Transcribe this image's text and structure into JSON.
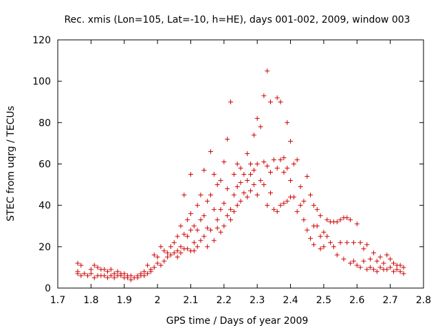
{
  "chart_data": {
    "type": "scatter",
    "title": "Rec. xmis (Lon=105, Lat=-10, h=HE), days 001-002, 2009, window 003",
    "xlabel": "GPS time / Days of year 2009",
    "ylabel": "STEC from uqrg / TECUs",
    "xlim": [
      1.7,
      2.8
    ],
    "ylim": [
      0,
      120
    ],
    "xticks": [
      "1.7",
      "1.8",
      "1.9",
      "2",
      "2.1",
      "2.2",
      "2.3",
      "2.4",
      "2.5",
      "2.6",
      "2.7",
      "2.8"
    ],
    "yticks": [
      "0",
      "20",
      "40",
      "60",
      "80",
      "100",
      "120"
    ],
    "grid": false,
    "marker": "+",
    "color": "#cc0000",
    "series": [
      {
        "points": [
          [
            1.76,
            12
          ],
          [
            1.76,
            8
          ],
          [
            1.76,
            7
          ],
          [
            1.77,
            11
          ],
          [
            1.77,
            6
          ],
          [
            1.78,
            7
          ],
          [
            1.79,
            6
          ],
          [
            1.8,
            9
          ],
          [
            1.8,
            7
          ],
          [
            1.81,
            11
          ],
          [
            1.81,
            5
          ],
          [
            1.82,
            10
          ],
          [
            1.82,
            6
          ],
          [
            1.83,
            9
          ],
          [
            1.83,
            6
          ],
          [
            1.84,
            9
          ],
          [
            1.84,
            6
          ],
          [
            1.85,
            8
          ],
          [
            1.85,
            5
          ],
          [
            1.86,
            9
          ],
          [
            1.86,
            6
          ],
          [
            1.87,
            7
          ],
          [
            1.87,
            5
          ],
          [
            1.88,
            8
          ],
          [
            1.88,
            6
          ],
          [
            1.89,
            7
          ],
          [
            1.89,
            6
          ],
          [
            1.9,
            7
          ],
          [
            1.9,
            5
          ],
          [
            1.91,
            6
          ],
          [
            1.91,
            5
          ],
          [
            1.92,
            6
          ],
          [
            1.92,
            4
          ],
          [
            1.93,
            5
          ],
          [
            1.94,
            5
          ],
          [
            1.94,
            6
          ],
          [
            1.95,
            6
          ],
          [
            1.95,
            7
          ],
          [
            1.96,
            8
          ],
          [
            1.96,
            6
          ],
          [
            1.97,
            11
          ],
          [
            1.97,
            7
          ],
          [
            1.98,
            9
          ],
          [
            1.98,
            8
          ],
          [
            1.99,
            16
          ],
          [
            1.99,
            10
          ],
          [
            2.0,
            12
          ],
          [
            2.0,
            15
          ],
          [
            2.01,
            20
          ],
          [
            2.01,
            11
          ],
          [
            2.02,
            18
          ],
          [
            2.02,
            13
          ],
          [
            2.03,
            15
          ],
          [
            2.03,
            17
          ],
          [
            2.04,
            16
          ],
          [
            2.04,
            20
          ],
          [
            2.05,
            17
          ],
          [
            2.05,
            22
          ],
          [
            2.06,
            15
          ],
          [
            2.06,
            18
          ],
          [
            2.06,
            25
          ],
          [
            2.07,
            17
          ],
          [
            2.07,
            20
          ],
          [
            2.07,
            30
          ],
          [
            2.08,
            45
          ],
          [
            2.08,
            19
          ],
          [
            2.08,
            26
          ],
          [
            2.09,
            19
          ],
          [
            2.09,
            25
          ],
          [
            2.09,
            33
          ],
          [
            2.1,
            55
          ],
          [
            2.1,
            18
          ],
          [
            2.1,
            28
          ],
          [
            2.1,
            36
          ],
          [
            2.11,
            18
          ],
          [
            2.11,
            22
          ],
          [
            2.11,
            30
          ],
          [
            2.12,
            40
          ],
          [
            2.12,
            20
          ],
          [
            2.12,
            28
          ],
          [
            2.13,
            45
          ],
          [
            2.13,
            23
          ],
          [
            2.13,
            33
          ],
          [
            2.14,
            57
          ],
          [
            2.14,
            25
          ],
          [
            2.14,
            35
          ],
          [
            2.15,
            42
          ],
          [
            2.15,
            29
          ],
          [
            2.15,
            20
          ],
          [
            2.16,
            66
          ],
          [
            2.16,
            28
          ],
          [
            2.16,
            45
          ],
          [
            2.17,
            55
          ],
          [
            2.17,
            23
          ],
          [
            2.17,
            38
          ],
          [
            2.18,
            50
          ],
          [
            2.18,
            33
          ],
          [
            2.18,
            29
          ],
          [
            2.19,
            52
          ],
          [
            2.19,
            38
          ],
          [
            2.19,
            27
          ],
          [
            2.2,
            61
          ],
          [
            2.2,
            30
          ],
          [
            2.2,
            41
          ],
          [
            2.21,
            72
          ],
          [
            2.21,
            35
          ],
          [
            2.21,
            48
          ],
          [
            2.22,
            90
          ],
          [
            2.22,
            38
          ],
          [
            2.22,
            33
          ],
          [
            2.23,
            55
          ],
          [
            2.23,
            45
          ],
          [
            2.23,
            37
          ],
          [
            2.24,
            60
          ],
          [
            2.24,
            49
          ],
          [
            2.24,
            40
          ],
          [
            2.25,
            58
          ],
          [
            2.25,
            51
          ],
          [
            2.25,
            42
          ],
          [
            2.26,
            55
          ],
          [
            2.26,
            46
          ],
          [
            2.27,
            65
          ],
          [
            2.27,
            52
          ],
          [
            2.27,
            44
          ],
          [
            2.28,
            60
          ],
          [
            2.28,
            55
          ],
          [
            2.28,
            47
          ],
          [
            2.29,
            74
          ],
          [
            2.29,
            57
          ],
          [
            2.29,
            50
          ],
          [
            2.3,
            82
          ],
          [
            2.3,
            60
          ],
          [
            2.3,
            45
          ],
          [
            2.31,
            78
          ],
          [
            2.31,
            52
          ],
          [
            2.32,
            93
          ],
          [
            2.32,
            61
          ],
          [
            2.32,
            50
          ],
          [
            2.33,
            105
          ],
          [
            2.33,
            59
          ],
          [
            2.33,
            40
          ],
          [
            2.34,
            90
          ],
          [
            2.34,
            56
          ],
          [
            2.34,
            46
          ],
          [
            2.35,
            62
          ],
          [
            2.35,
            38
          ],
          [
            2.36,
            92
          ],
          [
            2.36,
            58
          ],
          [
            2.36,
            37
          ],
          [
            2.37,
            90
          ],
          [
            2.37,
            62
          ],
          [
            2.37,
            40
          ],
          [
            2.38,
            63
          ],
          [
            2.38,
            56
          ],
          [
            2.38,
            41
          ],
          [
            2.39,
            80
          ],
          [
            2.39,
            58
          ],
          [
            2.39,
            42
          ],
          [
            2.4,
            71
          ],
          [
            2.4,
            52
          ],
          [
            2.4,
            44
          ],
          [
            2.41,
            60
          ],
          [
            2.41,
            44
          ],
          [
            2.42,
            62
          ],
          [
            2.42,
            37
          ],
          [
            2.43,
            49
          ],
          [
            2.43,
            40
          ],
          [
            2.44,
            42
          ],
          [
            2.44,
            33
          ],
          [
            2.45,
            54
          ],
          [
            2.45,
            28
          ],
          [
            2.46,
            45
          ],
          [
            2.46,
            24
          ],
          [
            2.47,
            40
          ],
          [
            2.47,
            30
          ],
          [
            2.47,
            21
          ],
          [
            2.48,
            38
          ],
          [
            2.48,
            30
          ],
          [
            2.49,
            35
          ],
          [
            2.49,
            25
          ],
          [
            2.49,
            19
          ],
          [
            2.5,
            27
          ],
          [
            2.5,
            20
          ],
          [
            2.51,
            33
          ],
          [
            2.51,
            25
          ],
          [
            2.52,
            32
          ],
          [
            2.52,
            22
          ],
          [
            2.53,
            32
          ],
          [
            2.53,
            20
          ],
          [
            2.54,
            32
          ],
          [
            2.54,
            16
          ],
          [
            2.55,
            33
          ],
          [
            2.55,
            22
          ],
          [
            2.56,
            34
          ],
          [
            2.56,
            14
          ],
          [
            2.57,
            34
          ],
          [
            2.57,
            22
          ],
          [
            2.58,
            33
          ],
          [
            2.58,
            12
          ],
          [
            2.59,
            22
          ],
          [
            2.59,
            13
          ],
          [
            2.6,
            31
          ],
          [
            2.6,
            11
          ],
          [
            2.61,
            22
          ],
          [
            2.61,
            10
          ],
          [
            2.62,
            19
          ],
          [
            2.62,
            13
          ],
          [
            2.63,
            21
          ],
          [
            2.63,
            9
          ],
          [
            2.64,
            14
          ],
          [
            2.64,
            10
          ],
          [
            2.65,
            17
          ],
          [
            2.65,
            9
          ],
          [
            2.66,
            13
          ],
          [
            2.66,
            8
          ],
          [
            2.67,
            15
          ],
          [
            2.67,
            10
          ],
          [
            2.68,
            12
          ],
          [
            2.68,
            9
          ],
          [
            2.69,
            16
          ],
          [
            2.69,
            9
          ],
          [
            2.7,
            14
          ],
          [
            2.7,
            10
          ],
          [
            2.71,
            12
          ],
          [
            2.71,
            8
          ],
          [
            2.72,
            11
          ],
          [
            2.72,
            9
          ],
          [
            2.73,
            11
          ],
          [
            2.73,
            8
          ],
          [
            2.74,
            10
          ],
          [
            2.74,
            7
          ]
        ]
      }
    ]
  }
}
